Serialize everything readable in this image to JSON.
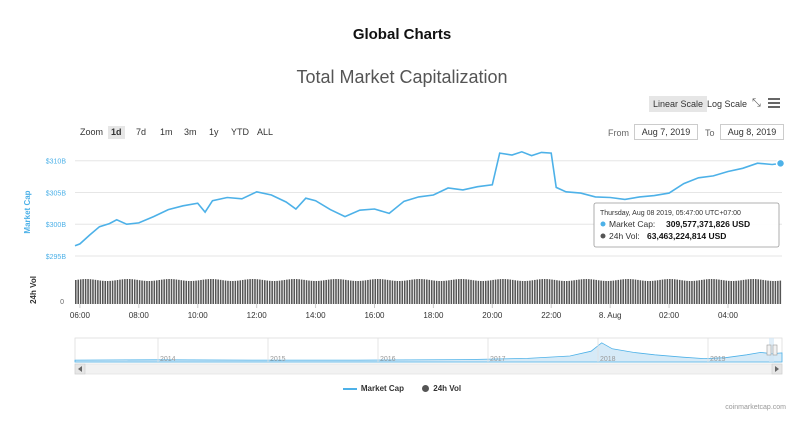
{
  "page": {
    "title": "Global Charts"
  },
  "toolbar": {
    "scale_linear": "Linear Scale",
    "scale_log": "Log Scale",
    "zoom_label": "Zoom",
    "ranges": [
      "1d",
      "7d",
      "1m",
      "3m",
      "1y",
      "YTD",
      "ALL"
    ],
    "active_range": "1d",
    "from_label": "From",
    "from_date": "Aug 7, 2019",
    "to_label": "To",
    "to_date": "Aug 8, 2019"
  },
  "tooltip": {
    "header": "Thursday, Aug 08 2019, 05:47:00 UTC+07:00",
    "market_cap_label": "Market Cap:",
    "market_cap_value": "309,577,371,826 USD",
    "vol_label": "24h Vol:",
    "vol_value": "63,463,224,814 USD"
  },
  "legend": {
    "market_cap": "Market Cap",
    "vol": "24h Vol"
  },
  "watermark": "coinmarketcap.com",
  "colors": {
    "line": "#4db1e8",
    "volume": "#555555",
    "grid": "#e6e6e6",
    "navigator_fill": "#d6eaf7"
  },
  "chart_data": {
    "type": "line",
    "title": "Total Market Capitalization",
    "ylabel": "Market Cap",
    "y_unit": "USD",
    "ylim": [
      292000000000,
      312000000000
    ],
    "yticks": [
      295000000000,
      300000000000,
      305000000000,
      310000000000
    ],
    "ytick_labels": [
      "$295B",
      "$300B",
      "$305B",
      "$310B"
    ],
    "x_start": "2019-08-07 05:50",
    "x_end": "2019-08-08 05:50",
    "xtick_labels": [
      "06:00",
      "08:00",
      "10:00",
      "12:00",
      "14:00",
      "16:00",
      "18:00",
      "20:00",
      "22:00",
      "8. Aug",
      "02:00",
      "04:00"
    ],
    "grid": true,
    "legend_position": "bottom",
    "series": [
      {
        "name": "Market Cap",
        "color": "#4db1e8",
        "points": [
          [
            "2019-08-07 05:50",
            296.6
          ],
          [
            "2019-08-07 06:00",
            296.9
          ],
          [
            "2019-08-07 06:20",
            298.3
          ],
          [
            "2019-08-07 06:40",
            299.6
          ],
          [
            "2019-08-07 07:00",
            300.1
          ],
          [
            "2019-08-07 07:15",
            300.7
          ],
          [
            "2019-08-07 07:35",
            300.0
          ],
          [
            "2019-08-07 08:00",
            300.2
          ],
          [
            "2019-08-07 08:30",
            301.2
          ],
          [
            "2019-08-07 09:00",
            302.3
          ],
          [
            "2019-08-07 09:30",
            302.9
          ],
          [
            "2019-08-07 10:00",
            303.3
          ],
          [
            "2019-08-07 10:15",
            301.9
          ],
          [
            "2019-08-07 10:30",
            303.7
          ],
          [
            "2019-08-07 11:00",
            304.2
          ],
          [
            "2019-08-07 11:30",
            304.0
          ],
          [
            "2019-08-07 12:00",
            305.1
          ],
          [
            "2019-08-07 12:30",
            304.6
          ],
          [
            "2019-08-07 13:00",
            303.5
          ],
          [
            "2019-08-07 13:20",
            302.4
          ],
          [
            "2019-08-07 13:40",
            304.1
          ],
          [
            "2019-08-07 14:00",
            303.7
          ],
          [
            "2019-08-07 14:30",
            302.3
          ],
          [
            "2019-08-07 15:00",
            301.2
          ],
          [
            "2019-08-07 15:30",
            302.2
          ],
          [
            "2019-08-07 16:00",
            302.4
          ],
          [
            "2019-08-07 16:30",
            301.7
          ],
          [
            "2019-08-07 17:00",
            303.6
          ],
          [
            "2019-08-07 17:30",
            304.3
          ],
          [
            "2019-08-07 18:00",
            304.6
          ],
          [
            "2019-08-07 18:30",
            305.7
          ],
          [
            "2019-08-07 19:00",
            305.4
          ],
          [
            "2019-08-07 19:30",
            305.9
          ],
          [
            "2019-08-07 20:00",
            306.2
          ],
          [
            "2019-08-07 20:15",
            311.2
          ],
          [
            "2019-08-07 20:40",
            310.9
          ],
          [
            "2019-08-07 21:00",
            311.4
          ],
          [
            "2019-08-07 21:20",
            310.8
          ],
          [
            "2019-08-07 21:40",
            311.3
          ],
          [
            "2019-08-07 22:00",
            311.2
          ],
          [
            "2019-08-07 22:10",
            305.8
          ],
          [
            "2019-08-07 22:30",
            305.1
          ],
          [
            "2019-08-07 23:00",
            304.9
          ],
          [
            "2019-08-07 23:30",
            304.3
          ],
          [
            "2019-08-08 00:00",
            304.2
          ],
          [
            "2019-08-08 00:30",
            303.9
          ],
          [
            "2019-08-08 01:00",
            304.3
          ],
          [
            "2019-08-08 01:30",
            304.5
          ],
          [
            "2019-08-08 02:00",
            304.9
          ],
          [
            "2019-08-08 02:30",
            306.4
          ],
          [
            "2019-08-08 03:00",
            307.3
          ],
          [
            "2019-08-08 03:30",
            307.6
          ],
          [
            "2019-08-08 04:00",
            308.3
          ],
          [
            "2019-08-08 04:30",
            308.8
          ],
          [
            "2019-08-08 05:00",
            309.6
          ],
          [
            "2019-08-08 05:30",
            309.4
          ],
          [
            "2019-08-08 05:47",
            309.58
          ]
        ]
      },
      {
        "name": "24h Vol",
        "color": "#555555",
        "approx_value": 63.46,
        "unit": "B USD"
      }
    ],
    "volume_axis": {
      "label": "24h Vol",
      "tick_label": "0"
    },
    "navigator": {
      "year_labels": [
        "2014",
        "2015",
        "2016",
        "2017",
        "2018",
        "2019"
      ]
    }
  }
}
